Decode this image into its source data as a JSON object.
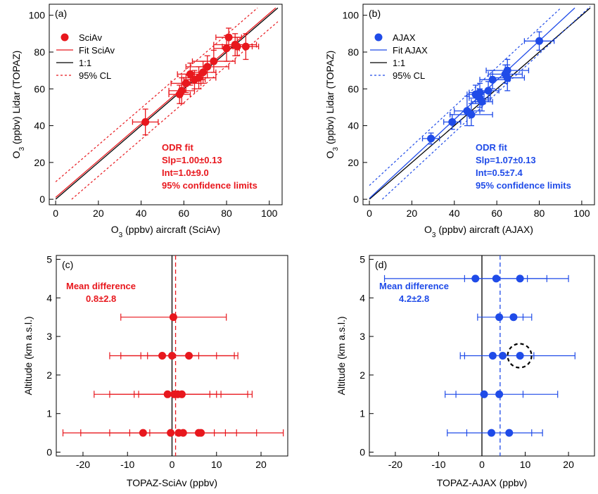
{
  "chart_data": [
    {
      "type": "scatter",
      "panel_label": "(a)",
      "xlabel": "O3 (ppbv) aircraft (SciAv)",
      "ylabel": "O3 (ppbv) Lidar (TOPAZ)",
      "xlim": [
        -3,
        106
      ],
      "ylim": [
        -3,
        106
      ],
      "xticks": [
        0,
        20,
        40,
        60,
        80,
        100
      ],
      "yticks": [
        0,
        20,
        40,
        60,
        80,
        100
      ],
      "color": "#e8171d",
      "legend": {
        "position": "top-left",
        "entries": [
          "SciAv",
          "Fit SciAv",
          "1:1",
          "95% CL"
        ]
      },
      "points": [
        {
          "x": 42,
          "y": 42,
          "xerr": 6,
          "yerr": 7
        },
        {
          "x": 58,
          "y": 57,
          "xerr": 5,
          "yerr": 5
        },
        {
          "x": 59,
          "y": 59,
          "xerr": 6,
          "yerr": 7
        },
        {
          "x": 61,
          "y": 63,
          "xerr": 7,
          "yerr": 5
        },
        {
          "x": 63,
          "y": 68,
          "xerr": 6,
          "yerr": 6
        },
        {
          "x": 65,
          "y": 65,
          "xerr": 5,
          "yerr": 5
        },
        {
          "x": 67,
          "y": 66,
          "xerr": 8,
          "yerr": 6
        },
        {
          "x": 69,
          "y": 69,
          "xerr": 6,
          "yerr": 6
        },
        {
          "x": 71,
          "y": 72,
          "xerr": 10,
          "yerr": 6
        },
        {
          "x": 74,
          "y": 75,
          "xerr": 10,
          "yerr": 6
        },
        {
          "x": 80,
          "y": 82,
          "xerr": 6,
          "yerr": 7
        },
        {
          "x": 81,
          "y": 88,
          "xerr": 6,
          "yerr": 5
        },
        {
          "x": 84,
          "y": 84,
          "xerr": 10,
          "yerr": 6
        },
        {
          "x": 85,
          "y": 83,
          "xerr": 7,
          "yerr": 5
        },
        {
          "x": 89,
          "y": 83,
          "xerr": 6,
          "yerr": 7
        }
      ],
      "fit": {
        "slope": 1.0,
        "intercept": 1.0
      },
      "ci": {
        "upper_intercept": 9.5,
        "lower_intercept": -7.5
      },
      "annotation": [
        "ODR fit",
        "Slp=1.00±0.13",
        "Int=1.0±9.0",
        "95% confidence limits"
      ]
    },
    {
      "type": "scatter",
      "panel_label": "(b)",
      "xlabel": "O3 (ppbv) aircraft (AJAX)",
      "ylabel": "O3 (ppbv) Lidar (TOPAZ)",
      "xlim": [
        -3,
        106
      ],
      "ylim": [
        -3,
        106
      ],
      "xticks": [
        0,
        20,
        40,
        60,
        80,
        100
      ],
      "yticks": [
        0,
        20,
        40,
        60,
        80,
        100
      ],
      "color": "#1f4be8",
      "legend": {
        "position": "top-left",
        "entries": [
          "AJAX",
          "Fit AJAX",
          "1:1",
          "95% CL"
        ]
      },
      "points": [
        {
          "x": 29,
          "y": 33,
          "xerr": 4,
          "yerr": 3
        },
        {
          "x": 39,
          "y": 42,
          "xerr": 4,
          "yerr": 4
        },
        {
          "x": 46,
          "y": 48,
          "xerr": 6,
          "yerr": 8
        },
        {
          "x": 48,
          "y": 46,
          "xerr": 10,
          "yerr": 6
        },
        {
          "x": 50,
          "y": 57,
          "xerr": 4,
          "yerr": 5
        },
        {
          "x": 52,
          "y": 58,
          "xerr": 5,
          "yerr": 5
        },
        {
          "x": 52,
          "y": 55,
          "xerr": 5,
          "yerr": 5
        },
        {
          "x": 53,
          "y": 53,
          "xerr": 5,
          "yerr": 5
        },
        {
          "x": 56,
          "y": 59,
          "xerr": 5,
          "yerr": 5
        },
        {
          "x": 58,
          "y": 65,
          "xerr": 6,
          "yerr": 5
        },
        {
          "x": 64,
          "y": 68,
          "xerr": 8,
          "yerr": 5
        },
        {
          "x": 65,
          "y": 66,
          "xerr": 8,
          "yerr": 7
        },
        {
          "x": 65,
          "y": 70,
          "xerr": 10,
          "yerr": 6
        },
        {
          "x": 80,
          "y": 86,
          "xerr": 7,
          "yerr": 5
        }
      ],
      "fit": {
        "slope": 1.07,
        "intercept": 0.5
      },
      "ci": {
        "upper_intercept": 7.5,
        "lower_intercept": -6.5
      },
      "annotation": [
        "ODR fit",
        "Slp=1.07±0.13",
        "Int=0.5±7.4",
        "95% confidence limits"
      ]
    },
    {
      "type": "scatter",
      "panel_label": "(c)",
      "xlabel": "TOPAZ-SciAv (ppbv)",
      "ylabel": "Altitude (km a.s.l.)",
      "xlim": [
        -26,
        26
      ],
      "ylim": [
        -0.1,
        5.1
      ],
      "xticks": [
        -20,
        -10,
        0,
        10,
        20
      ],
      "yticks": [
        0,
        1,
        2,
        3,
        4,
        5
      ],
      "color": "#e8171d",
      "mean_line": 0.8,
      "annotation": [
        "Mean difference",
        "0.8±2.8"
      ],
      "rows": [
        {
          "y": 3.5,
          "points": [
            0.3
          ],
          "bars": [
            [
              -11.5,
              12.2
            ]
          ],
          "extra_caps": []
        },
        {
          "y": 2.5,
          "points": [
            -2.2,
            0.0,
            3.8
          ],
          "bars": [
            [
              -14.0,
              14.8
            ],
            [
              -11.5,
              14.0
            ],
            [
              -5.5,
              6.0
            ]
          ],
          "extra_caps": [
            -7.0,
            10.0
          ]
        },
        {
          "y": 1.5,
          "points": [
            -1.0,
            0.5,
            1.3,
            2.2
          ],
          "bars": [
            [
              -17.5,
              18.0
            ],
            [
              -14.0,
              17.0
            ],
            [
              -8.5,
              10.0
            ]
          ],
          "extra_caps": [
            -7.5,
            8.5,
            11.0
          ]
        },
        {
          "y": 0.5,
          "points": [
            -6.5,
            -0.3,
            1.5,
            2.5,
            6.0,
            6.5
          ],
          "bars": [
            [
              -24.5,
              25.0
            ],
            [
              -20.5,
              19.0
            ],
            [
              -14.0,
              14.5
            ]
          ],
          "extra_caps": [
            -9.5,
            -5.0,
            9.5,
            12.0
          ]
        }
      ]
    },
    {
      "type": "scatter",
      "panel_label": "(d)",
      "xlabel": "TOPAZ-AJAX (ppbv)",
      "ylabel": "Altitude (km a.s.l.)",
      "xlim": [
        -26,
        26
      ],
      "ylim": [
        -0.1,
        5.1
      ],
      "xticks": [
        -20,
        -10,
        0,
        10,
        20
      ],
      "yticks": [
        0,
        1,
        2,
        3,
        4,
        5
      ],
      "color": "#1f4be8",
      "mean_line": 4.2,
      "annotation": [
        "Mean difference",
        "4.2±2.8"
      ],
      "highlight": {
        "x": 8.7,
        "y": 2.5
      },
      "rows": [
        {
          "y": 4.5,
          "points": [
            -1.5,
            3.3,
            8.8
          ],
          "bars": [
            [
              -22.5,
              20.0
            ],
            [
              -4.0,
              15.0
            ]
          ],
          "extra_caps": [
            10.5
          ]
        },
        {
          "y": 3.5,
          "points": [
            4.0,
            7.3
          ],
          "bars": [
            [
              -1.0,
              11.5
            ]
          ],
          "extra_caps": [
            9.5
          ]
        },
        {
          "y": 2.5,
          "points": [
            2.5,
            4.8,
            8.8
          ],
          "bars": [
            [
              -5.0,
              21.5
            ]
          ],
          "extra_caps": [
            -4.0,
            12.0
          ]
        },
        {
          "y": 1.5,
          "points": [
            0.5,
            4.0
          ],
          "bars": [
            [
              -8.5,
              17.5
            ]
          ],
          "extra_caps": [
            -6.0,
            9.5
          ]
        },
        {
          "y": 0.5,
          "points": [
            2.2,
            6.3
          ],
          "bars": [
            [
              -8.0,
              14.0
            ]
          ],
          "extra_caps": [
            -3.5,
            11.5
          ]
        }
      ]
    }
  ]
}
